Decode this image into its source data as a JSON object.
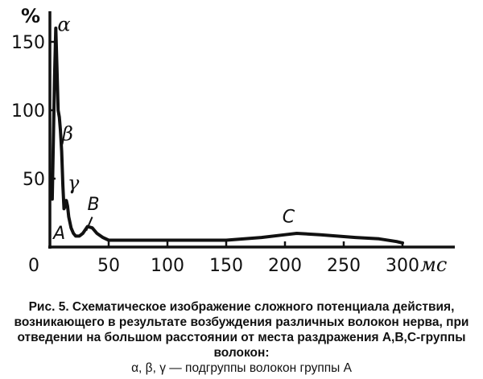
{
  "chart_data": {
    "type": "line",
    "ylabel": "%",
    "xlabel": "мс",
    "xlim": [
      0,
      300
    ],
    "ylim": [
      0,
      170
    ],
    "x_ticks": [
      "0",
      "50",
      "100",
      "150",
      "200",
      "250",
      "300"
    ],
    "y_ticks": [
      "50",
      "100",
      "150"
    ],
    "series": [
      {
        "x": [
          2,
          4,
          5,
          6,
          7,
          8,
          9,
          10,
          11,
          12,
          13,
          14,
          15,
          16,
          18,
          20,
          22,
          25,
          28,
          32,
          36,
          40,
          45,
          50,
          70,
          100,
          150,
          180,
          200,
          210,
          230,
          260,
          280,
          295,
          300
        ],
        "y": [
          35,
          125,
          160,
          130,
          100,
          95,
          85,
          70,
          45,
          28,
          30,
          34,
          30,
          22,
          14,
          10,
          8,
          8,
          10,
          15,
          14,
          10,
          7,
          5,
          5,
          5,
          5,
          7,
          9,
          10,
          9,
          7,
          6,
          4,
          3
        ]
      }
    ],
    "annotations": [
      {
        "label": "α",
        "x": 12,
        "y": 158
      },
      {
        "label": "β",
        "x": 15,
        "y": 78
      },
      {
        "label": "γ",
        "x": 20,
        "y": 42
      },
      {
        "label": "A",
        "x": 8,
        "y": 6
      },
      {
        "label": "B",
        "x": 37,
        "y": 27
      },
      {
        "label": "C",
        "x": 203,
        "y": 18
      }
    ]
  },
  "caption": {
    "line1": "Рис. 5. Схематическое изображение сложного потенциала действия,",
    "line2": "возникающего в результате возбуждения различных волокон нерва, при",
    "line3": "отведении на большом расстоянии от места раздражения А,В,С-группы",
    "line4": "волокон:",
    "line5": "α, β, γ — подгруппы волокон группы А"
  }
}
